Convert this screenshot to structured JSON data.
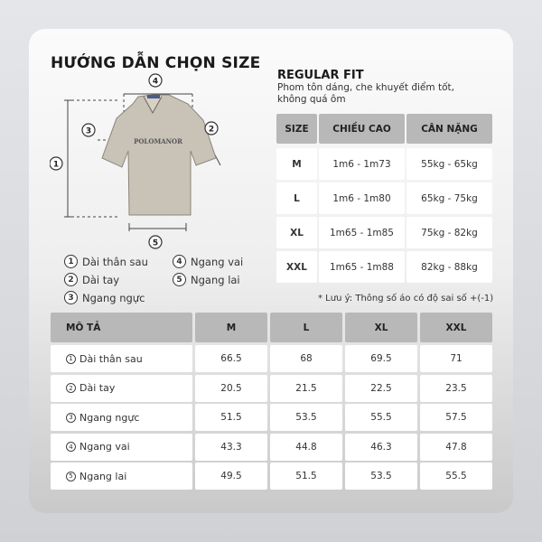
{
  "title": "HƯỚNG DẪN CHỌN SIZE",
  "fit": {
    "name": "REGULAR FIT",
    "description": "Phom tôn dáng, che khuyết điểm tốt, không quá ôm"
  },
  "shirt": {
    "brand": "POLOMANOR"
  },
  "legend": [
    {
      "num": "1",
      "label": "Dài thân sau"
    },
    {
      "num": "2",
      "label": "Dài tay"
    },
    {
      "num": "3",
      "label": "Ngang ngực"
    },
    {
      "num": "4",
      "label": "Ngang vai"
    },
    {
      "num": "5",
      "label": "Ngang lai"
    }
  ],
  "size_table": {
    "headers": [
      "SIZE",
      "CHIỀU CAO",
      "CÂN NẶNG"
    ],
    "rows": [
      [
        "M",
        "1m6 - 1m73",
        "55kg - 65kg"
      ],
      [
        "L",
        "1m6 - 1m80",
        "65kg - 75kg"
      ],
      [
        "XL",
        "1m65 - 1m85",
        "75kg - 82kg"
      ],
      [
        "XXL",
        "1m65 - 1m88",
        "82kg - 88kg"
      ]
    ]
  },
  "note": "* Lưu ý: Thông số áo có độ sai số  +(-1)",
  "measure_table": {
    "headers": [
      "MÔ TẢ",
      "M",
      "L",
      "XL",
      "XXL"
    ],
    "rows": [
      {
        "num": "1",
        "label": "Dài thân sau",
        "values": [
          "66.5",
          "68",
          "69.5",
          "71"
        ]
      },
      {
        "num": "2",
        "label": "Dài tay",
        "values": [
          "20.5",
          "21.5",
          "22.5",
          "23.5"
        ]
      },
      {
        "num": "3",
        "label": "Ngang ngực",
        "values": [
          "51.5",
          "53.5",
          "55.5",
          "57.5"
        ]
      },
      {
        "num": "4",
        "label": "Ngang vai",
        "values": [
          "43.3",
          "44.8",
          "46.3",
          "47.8"
        ]
      },
      {
        "num": "5",
        "label": "Ngang lai",
        "values": [
          "49.5",
          "51.5",
          "53.5",
          "55.5"
        ]
      }
    ]
  }
}
